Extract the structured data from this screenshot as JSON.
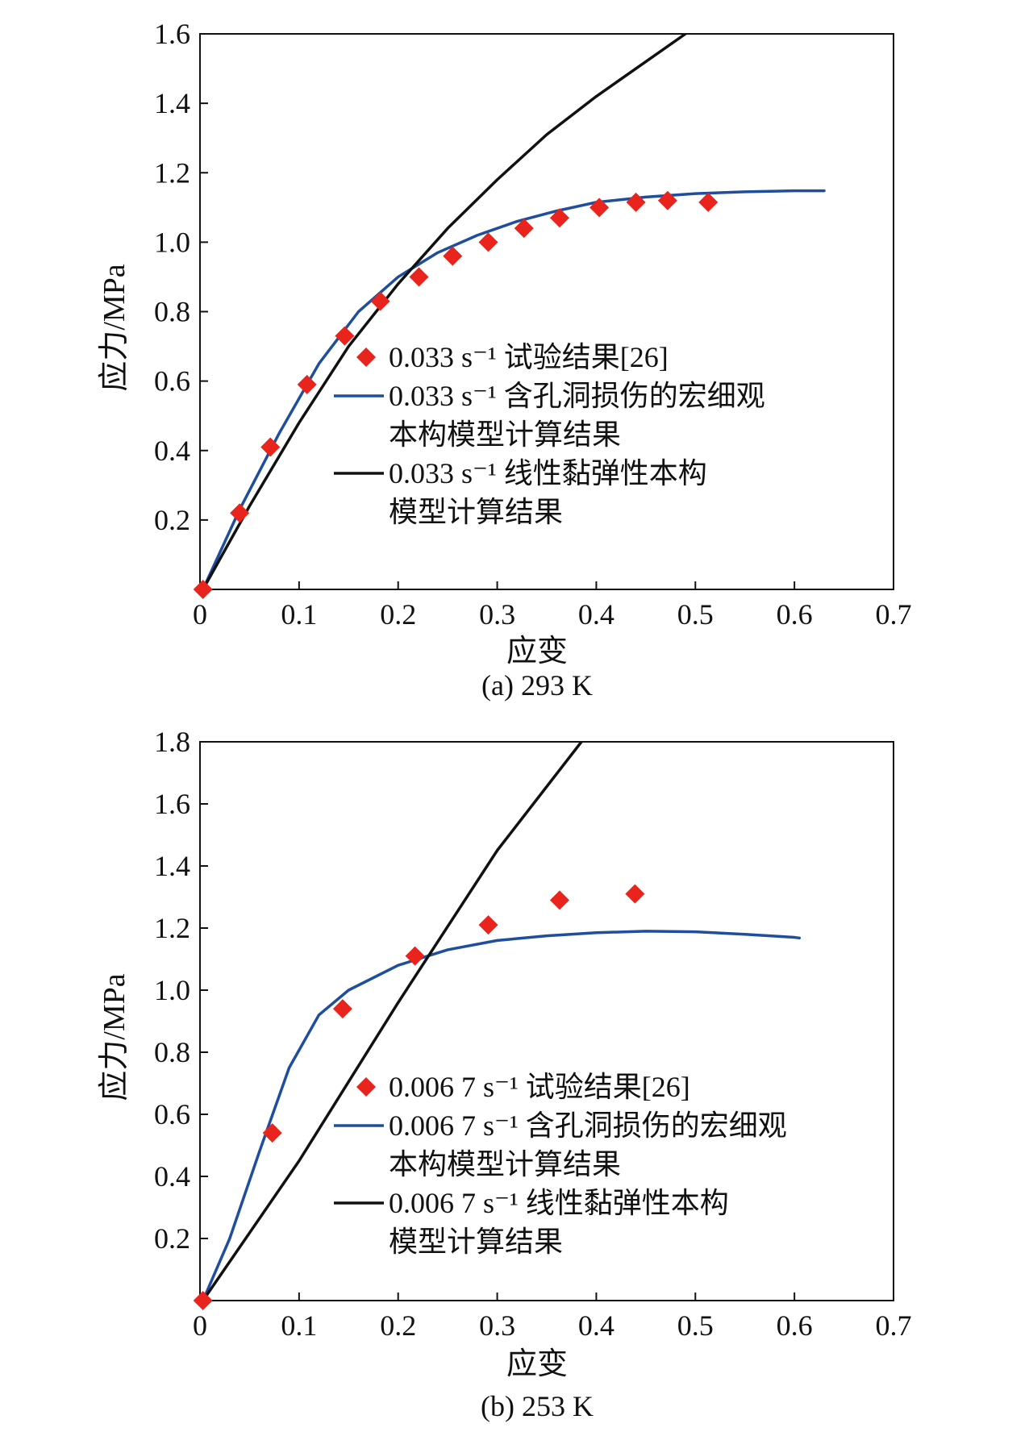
{
  "chart_data": [
    {
      "type": "line",
      "caption": "(a) 293 K",
      "xlabel": "应变",
      "ylabel": "应力/MPa",
      "xlim": [
        0,
        0.7
      ],
      "ylim": [
        0,
        1.6
      ],
      "xticks": [
        "0",
        "0.1",
        "0.2",
        "0.3",
        "0.4",
        "0.5",
        "0.6",
        "0.7"
      ],
      "yticks": [
        "0.2",
        "0.4",
        "0.6",
        "0.8",
        "1.0",
        "1.2",
        "1.4",
        "1.6"
      ],
      "xtick_values": [
        0,
        0.1,
        0.2,
        0.3,
        0.4,
        0.5,
        0.6,
        0.7
      ],
      "ytick_values": [
        0.2,
        0.4,
        0.6,
        0.8,
        1.0,
        1.2,
        1.4,
        1.6
      ],
      "legend_placement": "center-right",
      "series": [
        {
          "legend": [
            "0.033 s⁻¹ 试验结果[26]"
          ],
          "style": "markers",
          "color": "#e8241c",
          "x": [
            0.003,
            0.04,
            0.071,
            0.108,
            0.146,
            0.182,
            0.221,
            0.255,
            0.291,
            0.327,
            0.363,
            0.403,
            0.44,
            0.472,
            0.513
          ],
          "y": [
            0.0,
            0.22,
            0.41,
            0.59,
            0.73,
            0.83,
            0.9,
            0.96,
            1.0,
            1.04,
            1.07,
            1.1,
            1.115,
            1.12,
            1.115
          ]
        },
        {
          "legend": [
            "0.033 s⁻¹ 含孔洞损伤的宏细观",
            "本构模型计算结果"
          ],
          "style": "line",
          "color": "#1f4e9c",
          "x": [
            0.003,
            0.04,
            0.08,
            0.12,
            0.16,
            0.2,
            0.24,
            0.28,
            0.32,
            0.36,
            0.4,
            0.45,
            0.5,
            0.55,
            0.6,
            0.63
          ],
          "y": [
            0.0,
            0.23,
            0.45,
            0.65,
            0.8,
            0.9,
            0.97,
            1.02,
            1.06,
            1.09,
            1.115,
            1.13,
            1.14,
            1.145,
            1.148,
            1.148
          ]
        },
        {
          "legend": [
            "0.033 s⁻¹ 线性黏弹性本构",
            "模型计算结果"
          ],
          "style": "line",
          "color": "#111111",
          "x": [
            0.003,
            0.05,
            0.1,
            0.15,
            0.2,
            0.25,
            0.3,
            0.35,
            0.4,
            0.45,
            0.49
          ],
          "y": [
            0.0,
            0.24,
            0.48,
            0.7,
            0.88,
            1.04,
            1.18,
            1.31,
            1.42,
            1.52,
            1.6
          ]
        }
      ]
    },
    {
      "type": "line",
      "caption": "(b) 253 K",
      "xlabel": "应变",
      "ylabel": "应力/MPa",
      "xlim": [
        0,
        0.7
      ],
      "ylim": [
        0,
        1.8
      ],
      "xticks": [
        "0",
        "0.1",
        "0.2",
        "0.3",
        "0.4",
        "0.5",
        "0.6",
        "0.7"
      ],
      "yticks": [
        "0.2",
        "0.4",
        "0.6",
        "0.8",
        "1.0",
        "1.2",
        "1.4",
        "1.6",
        "1.8"
      ],
      "xtick_values": [
        0,
        0.1,
        0.2,
        0.3,
        0.4,
        0.5,
        0.6,
        0.7
      ],
      "ytick_values": [
        0.2,
        0.4,
        0.6,
        0.8,
        1.0,
        1.2,
        1.4,
        1.6,
        1.8
      ],
      "legend_placement": "center-right",
      "series": [
        {
          "legend": [
            "0.006 7 s⁻¹ 试验结果[26]"
          ],
          "style": "markers",
          "color": "#e8241c",
          "x": [
            0.003,
            0.073,
            0.144,
            0.217,
            0.291,
            0.363,
            0.439
          ],
          "y": [
            0.0,
            0.54,
            0.94,
            1.11,
            1.21,
            1.29,
            1.31
          ]
        },
        {
          "legend": [
            "0.006 7 s⁻¹ 含孔洞损伤的宏细观",
            "本构模型计算结果"
          ],
          "style": "line",
          "color": "#1f4e9c",
          "x": [
            0.003,
            0.03,
            0.06,
            0.09,
            0.12,
            0.15,
            0.2,
            0.25,
            0.3,
            0.35,
            0.4,
            0.45,
            0.5,
            0.55,
            0.6,
            0.605
          ],
          "y": [
            0.0,
            0.2,
            0.48,
            0.75,
            0.92,
            1.0,
            1.08,
            1.13,
            1.16,
            1.175,
            1.185,
            1.19,
            1.188,
            1.18,
            1.17,
            1.168
          ]
        },
        {
          "legend": [
            "0.006 7 s⁻¹ 线性黏弹性本构",
            "模型计算结果"
          ],
          "style": "line",
          "color": "#111111",
          "x": [
            0.003,
            0.1,
            0.2,
            0.3,
            0.385
          ],
          "y": [
            0.0,
            0.45,
            0.96,
            1.45,
            1.8
          ]
        }
      ]
    }
  ]
}
